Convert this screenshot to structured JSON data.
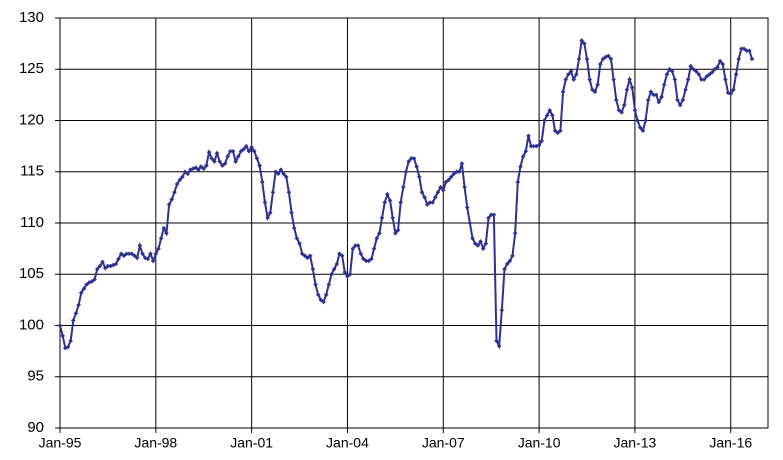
{
  "chart_data": {
    "type": "line",
    "x": [
      "1995-01",
      "1995-02",
      "1995-03",
      "1995-04",
      "1995-05",
      "1995-06",
      "1995-07",
      "1995-08",
      "1995-09",
      "1995-10",
      "1995-11",
      "1995-12",
      "1996-01",
      "1996-02",
      "1996-03",
      "1996-04",
      "1996-05",
      "1996-06",
      "1996-07",
      "1996-08",
      "1996-09",
      "1996-10",
      "1996-11",
      "1996-12",
      "1997-01",
      "1997-02",
      "1997-03",
      "1997-04",
      "1997-05",
      "1997-06",
      "1997-07",
      "1997-08",
      "1997-09",
      "1997-10",
      "1997-11",
      "1997-12",
      "1998-01",
      "1998-02",
      "1998-03",
      "1998-04",
      "1998-05",
      "1998-06",
      "1998-07",
      "1998-08",
      "1998-09",
      "1998-10",
      "1998-11",
      "1998-12",
      "1999-01",
      "1999-02",
      "1999-03",
      "1999-04",
      "1999-05",
      "1999-06",
      "1999-07",
      "1999-08",
      "1999-09",
      "1999-10",
      "1999-11",
      "1999-12",
      "2000-01",
      "2000-02",
      "2000-03",
      "2000-04",
      "2000-05",
      "2000-06",
      "2000-07",
      "2000-08",
      "2000-09",
      "2000-10",
      "2000-11",
      "2000-12",
      "2001-01",
      "2001-02",
      "2001-03",
      "2001-04",
      "2001-05",
      "2001-06",
      "2001-07",
      "2001-08",
      "2001-09",
      "2001-10",
      "2001-11",
      "2001-12",
      "2002-01",
      "2002-02",
      "2002-03",
      "2002-04",
      "2002-05",
      "2002-06",
      "2002-07",
      "2002-08",
      "2002-09",
      "2002-10",
      "2002-11",
      "2002-12",
      "2003-01",
      "2003-02",
      "2003-03",
      "2003-04",
      "2003-05",
      "2003-06",
      "2003-07",
      "2003-08",
      "2003-09",
      "2003-10",
      "2003-11",
      "2003-12",
      "2004-01",
      "2004-02",
      "2004-03",
      "2004-04",
      "2004-05",
      "2004-06",
      "2004-07",
      "2004-08",
      "2004-09",
      "2004-10",
      "2004-11",
      "2004-12",
      "2005-01",
      "2005-02",
      "2005-03",
      "2005-04",
      "2005-05",
      "2005-06",
      "2005-07",
      "2005-08",
      "2005-09",
      "2005-10",
      "2005-11",
      "2005-12",
      "2006-01",
      "2006-02",
      "2006-03",
      "2006-04",
      "2006-05",
      "2006-06",
      "2006-07",
      "2006-08",
      "2006-09",
      "2006-10",
      "2006-11",
      "2006-12",
      "2007-01",
      "2007-02",
      "2007-03",
      "2007-04",
      "2007-05",
      "2007-06",
      "2007-07",
      "2007-08",
      "2007-09",
      "2007-10",
      "2007-11",
      "2007-12",
      "2008-01",
      "2008-02",
      "2008-03",
      "2008-04",
      "2008-05",
      "2008-06",
      "2008-07",
      "2008-08",
      "2008-09",
      "2008-10",
      "2008-11",
      "2008-12",
      "2009-01",
      "2009-02",
      "2009-03",
      "2009-04",
      "2009-05",
      "2009-06",
      "2009-07",
      "2009-08",
      "2009-09",
      "2009-10",
      "2009-11",
      "2009-12",
      "2010-01",
      "2010-02",
      "2010-03",
      "2010-04",
      "2010-05",
      "2010-06",
      "2010-07",
      "2010-08",
      "2010-09",
      "2010-10",
      "2010-11",
      "2010-12",
      "2011-01",
      "2011-02",
      "2011-03",
      "2011-04",
      "2011-05",
      "2011-06",
      "2011-07",
      "2011-08",
      "2011-09",
      "2011-10",
      "2011-11",
      "2011-12",
      "2012-01",
      "2012-02",
      "2012-03",
      "2012-04",
      "2012-05",
      "2012-06",
      "2012-07",
      "2012-08",
      "2012-09",
      "2012-10",
      "2012-11",
      "2012-12",
      "2013-01",
      "2013-02",
      "2013-03",
      "2013-04",
      "2013-05",
      "2013-06",
      "2013-07",
      "2013-08",
      "2013-09",
      "2013-10",
      "2013-11",
      "2013-12",
      "2014-01",
      "2014-02",
      "2014-03",
      "2014-04",
      "2014-05",
      "2014-06",
      "2014-07",
      "2014-08",
      "2014-09",
      "2014-10",
      "2014-11",
      "2014-12",
      "2015-01",
      "2015-02",
      "2015-03",
      "2015-04",
      "2015-05",
      "2015-06",
      "2015-07",
      "2015-08",
      "2015-09",
      "2015-10",
      "2015-11",
      "2015-12",
      "2016-01",
      "2016-02",
      "2016-03",
      "2016-04",
      "2016-05",
      "2016-06",
      "2016-07",
      "2016-08",
      "2016-09"
    ],
    "series": [
      {
        "color": "#2e3192",
        "values": [
          100,
          99,
          97.8,
          97.9,
          98.5,
          100.5,
          101.2,
          102,
          103.2,
          103.6,
          104,
          104.2,
          104.3,
          104.5,
          105.5,
          105.8,
          106.2,
          105.6,
          105.8,
          105.8,
          105.9,
          106,
          106.5,
          107,
          106.8,
          107,
          107,
          107,
          106.8,
          106.6,
          107.8,
          107,
          106.6,
          106.5,
          107,
          106.3,
          107,
          107.5,
          108.5,
          109.5,
          109,
          111.8,
          112.3,
          113,
          113.8,
          114.2,
          114.5,
          115,
          114.8,
          115.2,
          115.3,
          115.4,
          115.2,
          115.5,
          115.3,
          115.6,
          116.9,
          116.3,
          116,
          116.8,
          116,
          115.6,
          115.8,
          116.5,
          117,
          117,
          116,
          116.5,
          117,
          117.2,
          117.5,
          117,
          117.4,
          117,
          116.3,
          115.6,
          114,
          112,
          110.5,
          111,
          113,
          115,
          114.8,
          115.2,
          114.8,
          114.5,
          113,
          111,
          109.5,
          108.5,
          108,
          107,
          106.8,
          106.6,
          106.8,
          105.5,
          104,
          103,
          102.5,
          102.3,
          103,
          104,
          105,
          105.5,
          106,
          107,
          106.8,
          105.2,
          104.8,
          105,
          107.5,
          107.8,
          107.8,
          107,
          106.5,
          106.3,
          106.3,
          106.5,
          107.5,
          108.5,
          109,
          110.5,
          112,
          112.8,
          112.2,
          110.5,
          109,
          109.3,
          112,
          113.5,
          115,
          116,
          116.3,
          116.3,
          115.5,
          114.5,
          113,
          112.5,
          111.8,
          112,
          112,
          112.5,
          113,
          113.5,
          113.2,
          114,
          114.2,
          114.5,
          114.8,
          115,
          115,
          115.8,
          113.5,
          111.5,
          110,
          108.5,
          108,
          107.8,
          108.2,
          107.5,
          108,
          110.5,
          110.8,
          110.8,
          98.5,
          98,
          101.5,
          105.5,
          106,
          106.3,
          106.8,
          109,
          114,
          115.5,
          116.5,
          117,
          118.5,
          117.5,
          117.5,
          117.5,
          117.6,
          118,
          120,
          120.5,
          121,
          120.5,
          119,
          118.8,
          119,
          122.8,
          124,
          124.5,
          124.8,
          124,
          124.5,
          126,
          127.8,
          127.5,
          126,
          124,
          123,
          122.8,
          123.5,
          125.5,
          126,
          126.2,
          126.3,
          126,
          124,
          122,
          121,
          120.8,
          121.5,
          123,
          124,
          123.2,
          121,
          120,
          119.3,
          119,
          120,
          122,
          122.8,
          122.5,
          122.5,
          121.8,
          122.3,
          123.5,
          124.5,
          125,
          124.8,
          124,
          122,
          121.5,
          122,
          123,
          124,
          125.3,
          125,
          124.8,
          124.5,
          124,
          124,
          124.3,
          124.5,
          124.7,
          125,
          125.2,
          125.8,
          125.5,
          124,
          122.7,
          122.6,
          123,
          124.5,
          126,
          127,
          127,
          126.8,
          126.8,
          126
        ]
      }
    ],
    "xlim": [
      "1995-01",
      "2017-03"
    ],
    "xticks": [
      {
        "value": "1995-01",
        "label": "Jan-95"
      },
      {
        "value": "1998-01",
        "label": "Jan-98"
      },
      {
        "value": "2001-01",
        "label": "Jan-01"
      },
      {
        "value": "2004-01",
        "label": "Jan-04"
      },
      {
        "value": "2007-01",
        "label": "Jan-07"
      },
      {
        "value": "2010-01",
        "label": "Jan-10"
      },
      {
        "value": "2013-01",
        "label": "Jan-13"
      },
      {
        "value": "2016-01",
        "label": "Jan-16"
      }
    ],
    "ylim": [
      90,
      130
    ],
    "yticks": [
      90,
      95,
      100,
      105,
      110,
      115,
      120,
      125,
      130
    ],
    "grid": true
  }
}
